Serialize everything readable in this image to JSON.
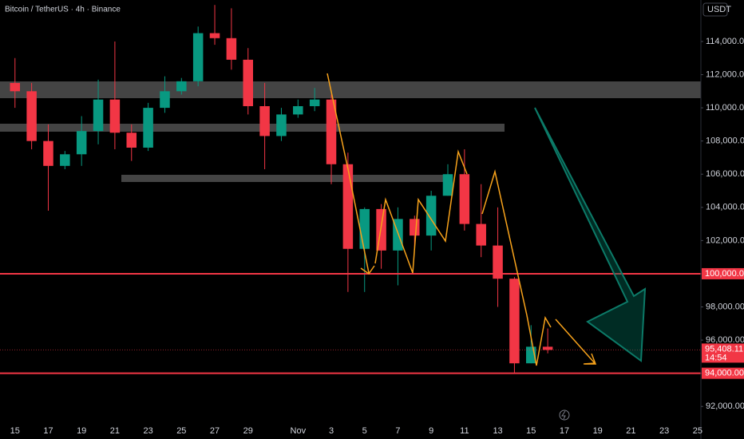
{
  "chart_data": {
    "type": "candlestick",
    "title": "Bitcoin / TetherUS · 4h · Binance",
    "currency": "USDT",
    "xlim": [
      -0.9,
      41.2
    ],
    "ylim": [
      91000,
      116500
    ],
    "yticks": [
      {
        "value": 92000,
        "label": "92,000.00"
      },
      {
        "value": 94000,
        "label": "94,000.00"
      },
      {
        "value": 96000,
        "label": "96,000.00"
      },
      {
        "value": 98000,
        "label": "98,000.00"
      },
      {
        "value": 100000,
        "label": "100,000.00"
      },
      {
        "value": 102000,
        "label": "102,000.00"
      },
      {
        "value": 104000,
        "label": "104,000.00"
      },
      {
        "value": 106000,
        "label": "106,000.00"
      },
      {
        "value": 108000,
        "label": "108,000.00"
      },
      {
        "value": 110000,
        "label": "110,000.00"
      },
      {
        "value": 112000,
        "label": "112,000.00"
      },
      {
        "value": 114000,
        "label": "114,000.00"
      }
    ],
    "xticks": [
      {
        "value": 0,
        "label": "15"
      },
      {
        "value": 2,
        "label": "17"
      },
      {
        "value": 4,
        "label": "19"
      },
      {
        "value": 6,
        "label": "21"
      },
      {
        "value": 8,
        "label": "23"
      },
      {
        "value": 10,
        "label": "25"
      },
      {
        "value": 12,
        "label": "27"
      },
      {
        "value": 14,
        "label": "29"
      },
      {
        "value": 17,
        "label": "Nov"
      },
      {
        "value": 19,
        "label": "3"
      },
      {
        "value": 21,
        "label": "5"
      },
      {
        "value": 23,
        "label": "7"
      },
      {
        "value": 25,
        "label": "9"
      },
      {
        "value": 27,
        "label": "11"
      },
      {
        "value": 29,
        "label": "13"
      },
      {
        "value": 31,
        "label": "15"
      },
      {
        "value": 33,
        "label": "17"
      },
      {
        "value": 35,
        "label": "19"
      },
      {
        "value": 37,
        "label": "21"
      },
      {
        "value": 39,
        "label": "23"
      },
      {
        "value": 41,
        "label": "25"
      }
    ],
    "up_color": "#089981",
    "down_color": "#f23645",
    "x": [
      0,
      1,
      2,
      3,
      4,
      5,
      6,
      7,
      8,
      9,
      10,
      11,
      12,
      13,
      14,
      15,
      16,
      17,
      18,
      19,
      20,
      21,
      22,
      23,
      24,
      25,
      26,
      27,
      28,
      29,
      30,
      31,
      32
    ],
    "open": [
      111500,
      111000,
      108000,
      106500,
      107200,
      108600,
      110500,
      108500,
      107600,
      110000,
      111000,
      111600,
      114500,
      114200,
      112900,
      110100,
      108300,
      109600,
      110100,
      110500,
      106600,
      101500,
      103900,
      101400,
      103300,
      102300,
      104700,
      106000,
      103000,
      101700,
      99700,
      94600,
      95600
    ],
    "high": [
      113000,
      111500,
      109000,
      107400,
      109500,
      111700,
      114000,
      109000,
      110300,
      111900,
      111800,
      114900,
      116200,
      116000,
      113600,
      111500,
      110000,
      110500,
      111200,
      110800,
      107300,
      104000,
      104200,
      104000,
      103500,
      105000,
      106600,
      107500,
      105400,
      104000,
      99800,
      96900,
      96700
    ],
    "low": [
      110000,
      107500,
      103800,
      106300,
      106500,
      107800,
      107500,
      106800,
      107400,
      109700,
      110800,
      111300,
      113800,
      112300,
      109600,
      106300,
      108000,
      109400,
      109800,
      105400,
      98900,
      98900,
      100300,
      99300,
      101600,
      101400,
      104700,
      102600,
      101000,
      98000,
      94000,
      94600,
      95200
    ],
    "close": [
      111000,
      108000,
      106500,
      107200,
      108600,
      110500,
      108500,
      107600,
      110000,
      111000,
      111600,
      114500,
      114200,
      112900,
      110100,
      108300,
      109600,
      110100,
      110500,
      106600,
      101500,
      103900,
      101400,
      103300,
      102300,
      104700,
      106000,
      103000,
      101700,
      99700,
      94600,
      95600,
      95408.11
    ],
    "levels": [
      {
        "value": 100000,
        "label": "100,000.00"
      },
      {
        "value": 94000,
        "label": "94,000.00"
      }
    ],
    "last_price": {
      "value": 95408.11,
      "label": "95,408.11",
      "countdown": "14:54"
    }
  }
}
